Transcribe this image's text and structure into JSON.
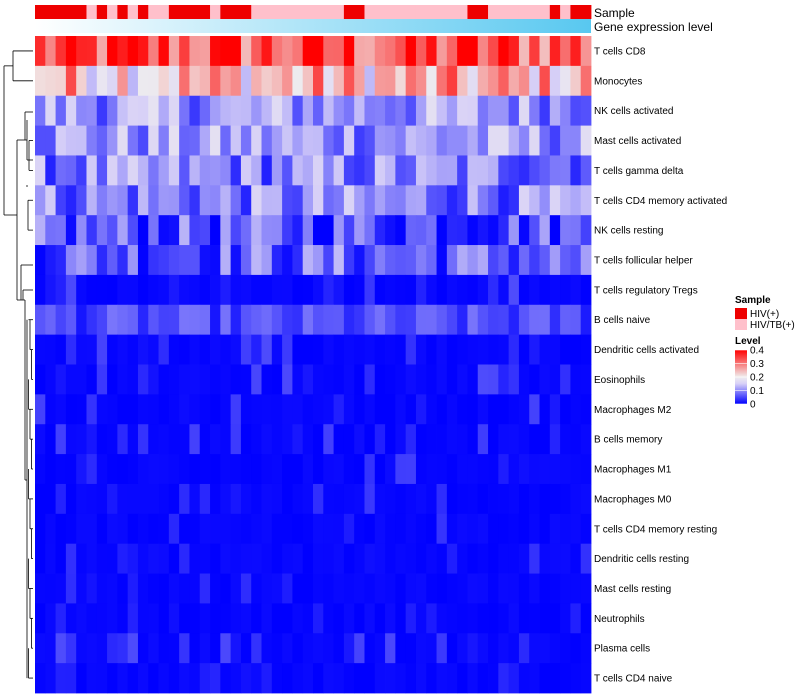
{
  "chart_data": {
    "type": "heatmap",
    "title": "",
    "annotation_labels": [
      "Sample",
      "Gene expression level"
    ],
    "column_groups": [
      "HIV(+)",
      "HIV(+)",
      "HIV(+)",
      "HIV(+)",
      "HIV(+)",
      "HIV/TB(+)",
      "HIV(+)",
      "HIV/TB(+)",
      "HIV(+)",
      "HIV/TB(+)",
      "HIV(+)",
      "HIV/TB(+)",
      "HIV/TB(+)",
      "HIV(+)",
      "HIV(+)",
      "HIV(+)",
      "HIV(+)",
      "HIV/TB(+)",
      "HIV(+)",
      "HIV(+)",
      "HIV(+)",
      "HIV/TB(+)",
      "HIV/TB(+)",
      "HIV/TB(+)",
      "HIV/TB(+)",
      "HIV/TB(+)",
      "HIV/TB(+)",
      "HIV/TB(+)",
      "HIV/TB(+)",
      "HIV/TB(+)",
      "HIV(+)",
      "HIV(+)",
      "HIV/TB(+)",
      "HIV/TB(+)",
      "HIV/TB(+)",
      "HIV/TB(+)",
      "HIV/TB(+)",
      "HIV/TB(+)",
      "HIV/TB(+)",
      "HIV/TB(+)",
      "HIV/TB(+)",
      "HIV/TB(+)",
      "HIV(+)",
      "HIV(+)",
      "HIV/TB(+)",
      "HIV/TB(+)",
      "HIV/TB(+)",
      "HIV/TB(+)",
      "HIV/TB(+)",
      "HIV/TB(+)",
      "HIV(+)",
      "HIV/TB(+)",
      "HIV(+)",
      "HIV(+)"
    ],
    "rows": [
      "T cells CD8",
      "Monocytes",
      "NK cells activated",
      "Mast cells activated",
      "T cells gamma delta",
      "T cells CD4 memory activated",
      "NK cells resting",
      "T cells follicular helper",
      "T cells regulatory  Tregs",
      "B cells naive",
      "Dendritic cells activated",
      "Eosinophils",
      "Macrophages M2",
      "B cells memory",
      "Macrophages M1",
      "Macrophages M0",
      "T cells CD4 memory resting",
      "Dendritic cells resting",
      "Mast cells resting",
      "Neutrophils",
      "Plasma cells",
      "T cells CD4 naive"
    ],
    "row_means": [
      0.33,
      0.24,
      0.11,
      0.11,
      0.09,
      0.09,
      0.06,
      0.07,
      0.02,
      0.05,
      0.03,
      0.02,
      0.015,
      0.015,
      0.012,
      0.012,
      0.005,
      0.006,
      0.003,
      0.002,
      0.02,
      0.005
    ],
    "color_scale": {
      "min": 0,
      "max": 0.4,
      "stops": [
        {
          "value": 0,
          "color": "#0000ff"
        },
        {
          "value": 0.15,
          "color": "#d7d0f7"
        },
        {
          "value": 0.2,
          "color": "#f0eeee"
        },
        {
          "value": 0.4,
          "color": "#ff0000"
        }
      ]
    },
    "legend": {
      "sample_title": "Sample",
      "sample_items": [
        {
          "label": "HIV(+)",
          "color": "#ee0000"
        },
        {
          "label": "HIV/TB(+)",
          "color": "#ffc0cb"
        }
      ],
      "level_title": "Level",
      "level_ticks": [
        "0.4",
        "0.3",
        "0.2",
        "0.1",
        "0"
      ],
      "level_tick_values": [
        0.4,
        0.3,
        0.2,
        0.1,
        0
      ],
      "position": "right"
    },
    "expression_gradient": {
      "from": "#ffffff",
      "to": "#58c8f0"
    },
    "dendrogram": "row clustering tree on left"
  }
}
